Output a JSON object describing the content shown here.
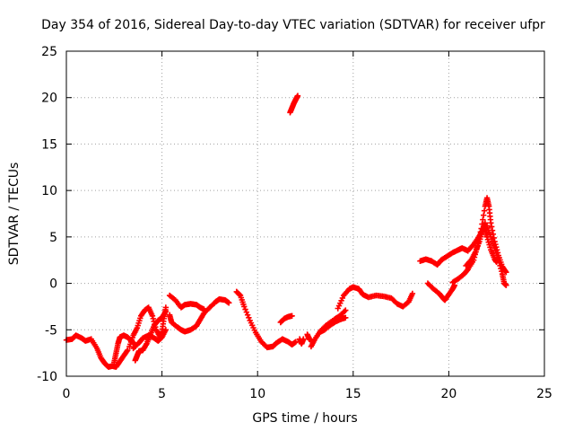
{
  "chart_data": {
    "type": "scatter",
    "title": "Day 354 of 2016, Sidereal Day-to-day VTEC variation (SDTVAR) for receiver ufpr",
    "xlabel": "GPS time / hours",
    "ylabel": "SDTVAR / TECUs",
    "xlim": [
      0,
      25
    ],
    "ylim": [
      -10,
      25
    ],
    "xticks": [
      "0",
      "5",
      "10",
      "15",
      "20",
      "25"
    ],
    "yticks": [
      "-10",
      "-5",
      "0",
      "5",
      "10",
      "15",
      "20",
      "25"
    ],
    "grid": true,
    "marker": "+",
    "color": "#ff0000",
    "series": [
      {
        "points": [
          [
            0.0,
            -6.1
          ],
          [
            0.3,
            -6.0
          ],
          [
            0.5,
            -5.6
          ],
          [
            0.8,
            -5.9
          ],
          [
            1.0,
            -6.2
          ],
          [
            1.3,
            -6.0
          ],
          [
            1.6,
            -7.0
          ],
          [
            1.8,
            -8.0
          ],
          [
            2.0,
            -8.6
          ],
          [
            2.2,
            -9.0
          ],
          [
            2.4,
            -8.9
          ],
          [
            2.6,
            -9.0
          ],
          [
            2.8,
            -8.4
          ],
          [
            3.0,
            -7.8
          ],
          [
            3.2,
            -7.2
          ]
        ]
      },
      {
        "points": [
          [
            2.5,
            -8.5
          ],
          [
            2.6,
            -7.5
          ],
          [
            2.7,
            -6.5
          ],
          [
            2.8,
            -5.8
          ],
          [
            3.0,
            -5.6
          ],
          [
            3.2,
            -5.8
          ],
          [
            3.4,
            -6.2
          ],
          [
            3.6,
            -6.6
          ]
        ]
      },
      {
        "points": [
          [
            3.3,
            -6.8
          ],
          [
            3.5,
            -5.6
          ],
          [
            3.7,
            -4.8
          ],
          [
            3.9,
            -3.5
          ],
          [
            4.1,
            -2.9
          ],
          [
            4.3,
            -2.6
          ],
          [
            4.5,
            -3.5
          ],
          [
            4.7,
            -5.0
          ],
          [
            4.9,
            -5.8
          ],
          [
            5.0,
            -5.2
          ],
          [
            5.1,
            -3.8
          ],
          [
            5.2,
            -2.6
          ]
        ]
      },
      {
        "points": [
          [
            3.6,
            -8.3
          ],
          [
            3.7,
            -7.8
          ],
          [
            3.8,
            -7.3
          ],
          [
            4.0,
            -7.2
          ],
          [
            4.2,
            -6.5
          ],
          [
            4.4,
            -5.5
          ],
          [
            4.6,
            -4.5
          ],
          [
            4.8,
            -4.0
          ],
          [
            5.0,
            -3.7
          ],
          [
            5.2,
            -3.0
          ]
        ]
      },
      {
        "points": [
          [
            3.5,
            -7.0
          ],
          [
            3.8,
            -6.4
          ],
          [
            4.0,
            -5.9
          ],
          [
            4.3,
            -5.6
          ],
          [
            4.6,
            -5.9
          ],
          [
            4.8,
            -6.2
          ],
          [
            5.0,
            -5.8
          ],
          [
            5.2,
            -5.0
          ]
        ]
      },
      {
        "points": [
          [
            5.4,
            -3.4
          ],
          [
            5.5,
            -4.2
          ],
          [
            5.8,
            -4.7
          ],
          [
            6.0,
            -5.0
          ],
          [
            6.2,
            -5.2
          ],
          [
            6.5,
            -5.0
          ],
          [
            6.8,
            -4.6
          ],
          [
            7.0,
            -3.9
          ],
          [
            7.2,
            -3.2
          ],
          [
            7.5,
            -2.6
          ],
          [
            7.8,
            -2.0
          ],
          [
            8.0,
            -1.7
          ],
          [
            8.3,
            -1.8
          ],
          [
            8.5,
            -2.1
          ]
        ]
      },
      {
        "points": [
          [
            5.4,
            -1.3
          ],
          [
            5.7,
            -1.8
          ],
          [
            6.0,
            -2.6
          ],
          [
            6.2,
            -2.3
          ],
          [
            6.5,
            -2.2
          ],
          [
            6.8,
            -2.3
          ],
          [
            7.0,
            -2.6
          ],
          [
            7.2,
            -2.8
          ]
        ]
      },
      {
        "points": [
          [
            8.9,
            -0.9
          ],
          [
            9.1,
            -1.3
          ],
          [
            9.3,
            -2.5
          ],
          [
            9.6,
            -4.0
          ],
          [
            9.9,
            -5.3
          ],
          [
            10.2,
            -6.3
          ],
          [
            10.5,
            -6.9
          ],
          [
            10.8,
            -6.8
          ],
          [
            11.0,
            -6.4
          ],
          [
            11.3,
            -6.0
          ],
          [
            11.6,
            -6.3
          ],
          [
            11.8,
            -6.6
          ],
          [
            12.0,
            -6.3
          ]
        ]
      },
      {
        "points": [
          [
            11.2,
            -4.2
          ],
          [
            11.4,
            -3.8
          ],
          [
            11.6,
            -3.6
          ],
          [
            11.8,
            -3.5
          ]
        ]
      },
      {
        "points": [
          [
            11.7,
            18.4
          ],
          [
            11.8,
            18.9
          ],
          [
            11.9,
            19.4
          ],
          [
            12.0,
            19.8
          ],
          [
            12.1,
            20.2
          ]
        ]
      },
      {
        "points": [
          [
            12.2,
            -6.0
          ],
          [
            12.3,
            -6.5
          ],
          [
            12.4,
            -6.0
          ]
        ]
      },
      {
        "points": [
          [
            12.6,
            -5.5
          ],
          [
            12.7,
            -6.0
          ],
          [
            12.8,
            -6.1
          ]
        ]
      },
      {
        "points": [
          [
            12.8,
            -6.8
          ],
          [
            13.0,
            -6.0
          ],
          [
            13.3,
            -5.1
          ],
          [
            13.6,
            -4.5
          ],
          [
            14.0,
            -3.9
          ],
          [
            14.3,
            -3.5
          ],
          [
            14.6,
            -2.9
          ]
        ]
      },
      {
        "points": [
          [
            13.3,
            -5.2
          ],
          [
            13.5,
            -5.0
          ],
          [
            13.8,
            -4.5
          ],
          [
            14.1,
            -4.1
          ],
          [
            14.3,
            -3.9
          ],
          [
            14.6,
            -3.7
          ]
        ]
      },
      {
        "points": [
          [
            14.2,
            -2.7
          ],
          [
            14.5,
            -1.3
          ],
          [
            14.8,
            -0.6
          ],
          [
            15.0,
            -0.4
          ],
          [
            15.3,
            -0.6
          ],
          [
            15.5,
            -1.2
          ],
          [
            15.8,
            -1.5
          ],
          [
            16.2,
            -1.3
          ],
          [
            16.6,
            -1.4
          ],
          [
            17.0,
            -1.6
          ],
          [
            17.3,
            -2.2
          ],
          [
            17.6,
            -2.5
          ],
          [
            17.9,
            -2.0
          ],
          [
            18.1,
            -1.1
          ]
        ]
      },
      {
        "points": [
          [
            18.5,
            2.4
          ],
          [
            18.8,
            2.6
          ],
          [
            19.1,
            2.4
          ],
          [
            19.4,
            2.0
          ],
          [
            19.6,
            2.5
          ],
          [
            19.9,
            2.9
          ],
          [
            20.2,
            3.3
          ],
          [
            20.5,
            3.6
          ],
          [
            20.7,
            3.8
          ],
          [
            21.0,
            3.5
          ],
          [
            21.3,
            4.2
          ],
          [
            21.6,
            5.1
          ],
          [
            21.8,
            5.9
          ],
          [
            21.9,
            6.5
          ]
        ]
      },
      {
        "points": [
          [
            18.9,
            0.0
          ],
          [
            19.2,
            -0.6
          ],
          [
            19.5,
            -1.1
          ],
          [
            19.7,
            -1.6
          ],
          [
            19.8,
            -1.8
          ],
          [
            20.0,
            -1.2
          ],
          [
            20.2,
            -0.6
          ],
          [
            20.3,
            -0.2
          ]
        ]
      },
      {
        "points": [
          [
            20.2,
            0.1
          ],
          [
            20.5,
            0.5
          ],
          [
            20.8,
            1.0
          ],
          [
            21.0,
            1.5
          ],
          [
            21.3,
            2.5
          ],
          [
            21.5,
            4.0
          ],
          [
            21.7,
            5.9
          ],
          [
            21.9,
            8.3
          ],
          [
            22.0,
            9.2
          ],
          [
            22.1,
            8.3
          ],
          [
            22.2,
            6.5
          ],
          [
            22.4,
            4.5
          ],
          [
            22.6,
            3.0
          ],
          [
            22.8,
            1.8
          ],
          [
            23.0,
            1.2
          ]
        ]
      },
      {
        "points": [
          [
            20.9,
            1.9
          ],
          [
            21.2,
            2.6
          ],
          [
            21.4,
            3.4
          ],
          [
            21.6,
            4.5
          ],
          [
            21.8,
            5.8
          ],
          [
            21.9,
            5.9
          ],
          [
            22.0,
            5.0
          ],
          [
            22.2,
            3.6
          ],
          [
            22.4,
            2.6
          ],
          [
            22.5,
            2.3
          ]
        ]
      },
      {
        "points": [
          [
            22.0,
            6.2
          ],
          [
            22.2,
            5.0
          ],
          [
            22.4,
            3.8
          ],
          [
            22.6,
            2.5
          ],
          [
            22.8,
            1.0
          ],
          [
            22.9,
            0.0
          ],
          [
            23.0,
            -0.2
          ]
        ]
      }
    ]
  }
}
